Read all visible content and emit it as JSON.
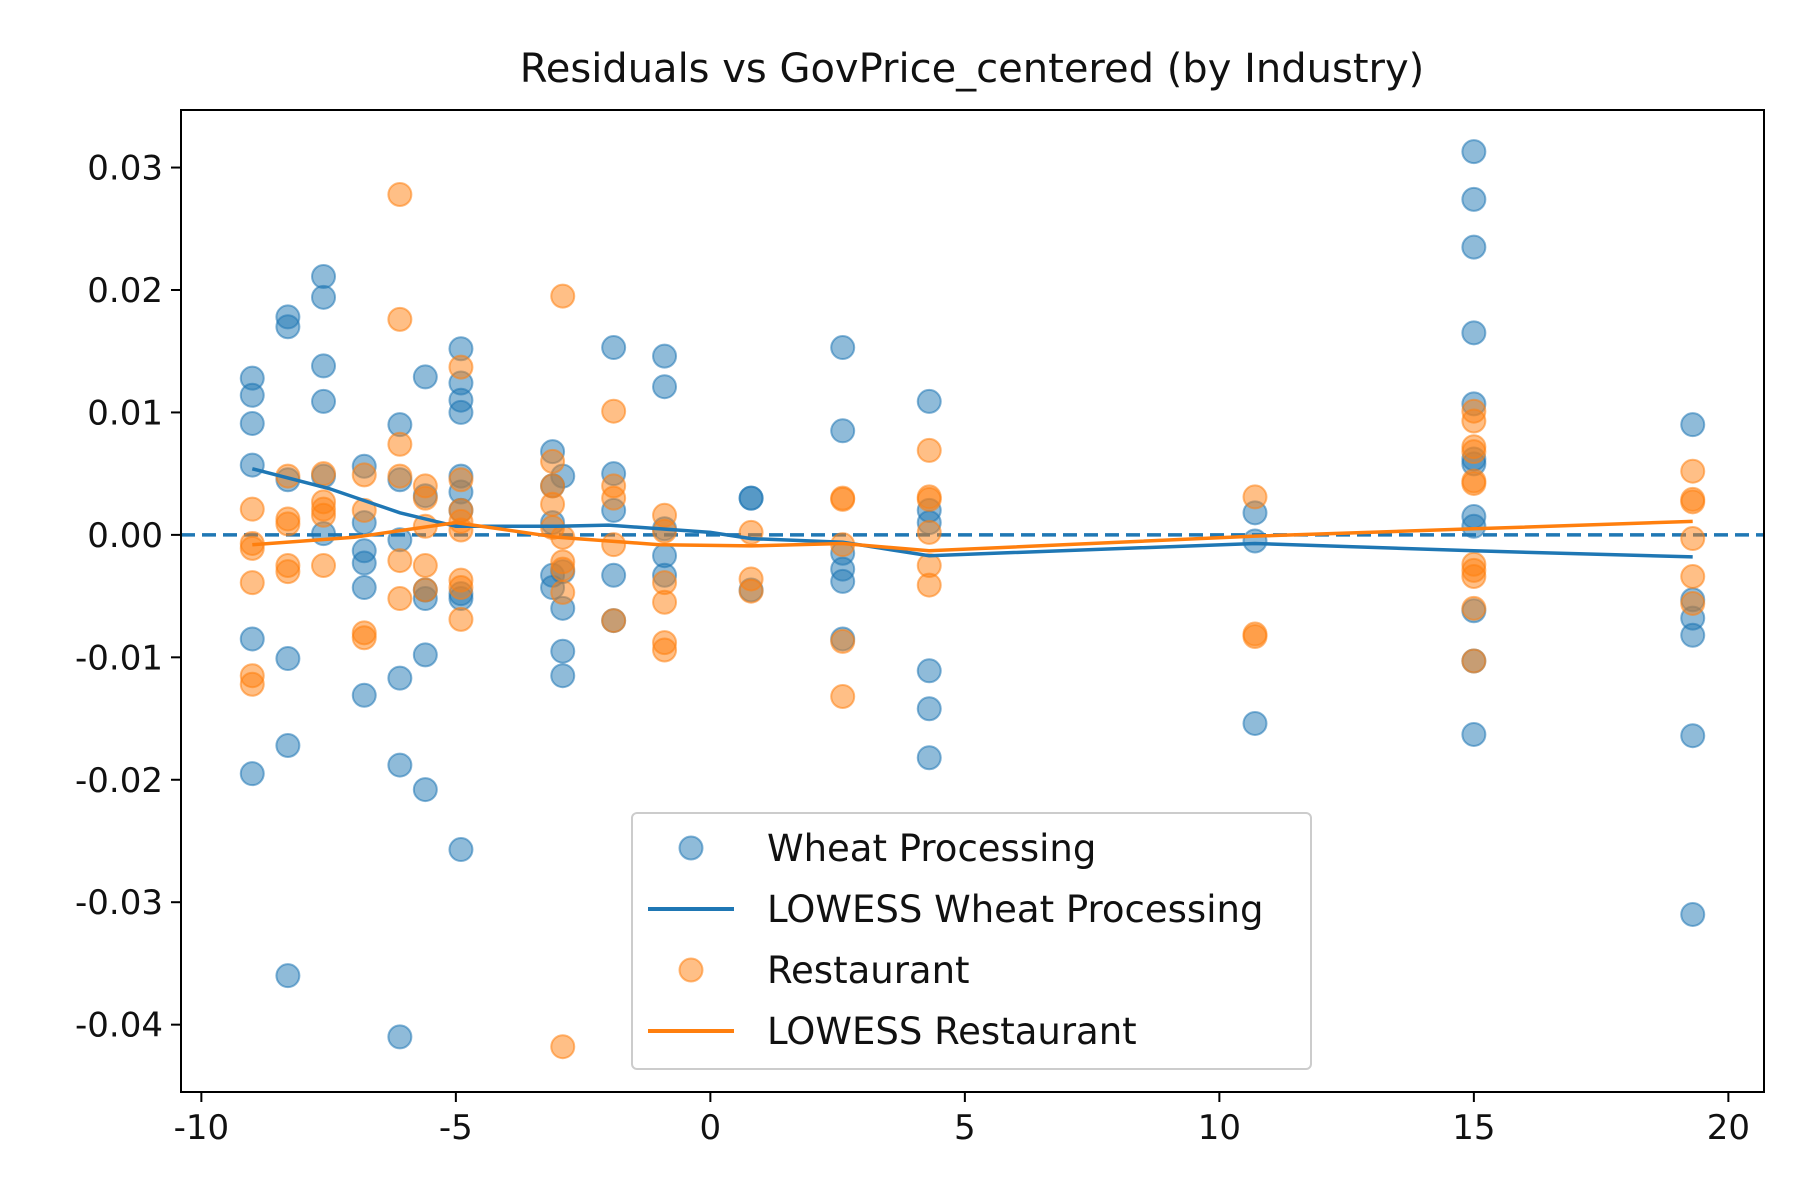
{
  "chart_data": {
    "type": "scatter",
    "title": "Residuals vs GovPrice_centered (by Industry)",
    "xlabel": "",
    "ylabel": "",
    "xlim": [
      -10.4,
      20.7
    ],
    "ylim": [
      -0.0455,
      0.0347
    ],
    "x_ticks": [
      -10,
      -5,
      0,
      5,
      10,
      15,
      20
    ],
    "x_tick_labels": [
      "-10",
      "-5",
      "0",
      "5",
      "10",
      "15",
      "20"
    ],
    "y_ticks": [
      0.03,
      0.02,
      0.01,
      0.0,
      -0.01,
      -0.02,
      -0.03,
      -0.04
    ],
    "y_tick_labels": [
      "0.03",
      "0.02",
      "0.01",
      "0.00",
      "-0.01",
      "-0.02",
      "-0.03",
      "-0.04"
    ],
    "grid": false,
    "reference_line": {
      "y": 0,
      "style": "dashed",
      "color": "#1f77b4"
    },
    "legend": {
      "placement": "lower-center",
      "entries": [
        {
          "label": "Wheat Processing",
          "kind": "marker",
          "color": "#1f77b4"
        },
        {
          "label": "LOWESS Wheat Processing",
          "kind": "line",
          "color": "#1f77b4"
        },
        {
          "label": "Restaurant",
          "kind": "marker",
          "color": "#ff7f0e"
        },
        {
          "label": "LOWESS Restaurant",
          "kind": "line",
          "color": "#ff7f0e"
        }
      ]
    },
    "series": [
      {
        "name": "Wheat Processing",
        "kind": "scatter",
        "color": "#1f77b4",
        "points": [
          [
            -9,
            0.0128
          ],
          [
            -9,
            0.0114
          ],
          [
            -9,
            0.0091
          ],
          [
            -9,
            0.0057
          ],
          [
            -9,
            -0.0085
          ],
          [
            -9,
            -0.0195
          ],
          [
            -8.3,
            0.0178
          ],
          [
            -8.3,
            0.017
          ],
          [
            -8.3,
            0.0045
          ],
          [
            -8.3,
            -0.0101
          ],
          [
            -8.3,
            -0.0172
          ],
          [
            -8.3,
            -0.036
          ],
          [
            -7.6,
            0.0211
          ],
          [
            -7.6,
            0.0194
          ],
          [
            -7.6,
            0.0138
          ],
          [
            -7.6,
            0.0109
          ],
          [
            -7.6,
            0.0048
          ],
          [
            -7.6,
            0.0001
          ],
          [
            -6.8,
            0.0056
          ],
          [
            -6.8,
            0.001
          ],
          [
            -6.8,
            -0.0013
          ],
          [
            -6.8,
            -0.0023
          ],
          [
            -6.8,
            -0.0043
          ],
          [
            -6.8,
            -0.0131
          ],
          [
            -6.1,
            0.009
          ],
          [
            -6.1,
            0.0045
          ],
          [
            -6.1,
            -0.0004
          ],
          [
            -6.1,
            -0.0117
          ],
          [
            -6.1,
            -0.0188
          ],
          [
            -6.1,
            -0.041
          ],
          [
            -5.6,
            0.0129
          ],
          [
            -5.6,
            0.0032
          ],
          [
            -5.6,
            -0.0045
          ],
          [
            -5.6,
            -0.0052
          ],
          [
            -5.6,
            -0.0098
          ],
          [
            -5.6,
            -0.0208
          ],
          [
            -4.9,
            0.0152
          ],
          [
            -4.9,
            0.0124
          ],
          [
            -4.9,
            0.011
          ],
          [
            -4.9,
            0.01
          ],
          [
            -4.9,
            0.0048
          ],
          [
            -4.9,
            0.0035
          ],
          [
            -4.9,
            0.002
          ],
          [
            -4.9,
            -0.0048
          ],
          [
            -4.9,
            -0.0052
          ],
          [
            -4.9,
            -0.0257
          ],
          [
            -3.1,
            0.0068
          ],
          [
            -3.1,
            0.004
          ],
          [
            -3.1,
            0.001
          ],
          [
            -3.1,
            -0.0033
          ],
          [
            -3.1,
            -0.0043
          ],
          [
            -2.9,
            0.0048
          ],
          [
            -2.9,
            -0.003
          ],
          [
            -2.9,
            -0.006
          ],
          [
            -2.9,
            -0.0095
          ],
          [
            -2.9,
            -0.0115
          ],
          [
            -1.9,
            0.0153
          ],
          [
            -1.9,
            0.005
          ],
          [
            -1.9,
            0.002
          ],
          [
            -1.9,
            -0.0033
          ],
          [
            -1.9,
            -0.007
          ],
          [
            -0.9,
            0.0146
          ],
          [
            -0.9,
            0.0121
          ],
          [
            -0.9,
            0.0005
          ],
          [
            -0.9,
            -0.0017
          ],
          [
            -0.9,
            -0.0033
          ],
          [
            0.8,
            0.003
          ],
          [
            0.8,
            0.003
          ],
          [
            0.8,
            -0.0045
          ],
          [
            2.6,
            0.0153
          ],
          [
            2.6,
            0.0085
          ],
          [
            2.6,
            -0.0015
          ],
          [
            2.6,
            -0.0028
          ],
          [
            2.6,
            -0.0038
          ],
          [
            2.6,
            -0.0085
          ],
          [
            4.3,
            0.0109
          ],
          [
            4.3,
            0.002
          ],
          [
            4.3,
            0.001
          ],
          [
            4.3,
            -0.0111
          ],
          [
            4.3,
            -0.0142
          ],
          [
            4.3,
            -0.0182
          ],
          [
            10.7,
            0.0018
          ],
          [
            10.7,
            -0.0005
          ],
          [
            10.7,
            -0.0154
          ],
          [
            15,
            0.0313
          ],
          [
            15,
            0.0274
          ],
          [
            15,
            0.0235
          ],
          [
            15,
            0.0165
          ],
          [
            15,
            0.0107
          ],
          [
            15,
            0.0062
          ],
          [
            15,
            0.0058
          ],
          [
            15,
            0.0015
          ],
          [
            15,
            0.0007
          ],
          [
            15,
            -0.0062
          ],
          [
            15,
            -0.0103
          ],
          [
            15,
            -0.0163
          ],
          [
            19.3,
            0.009
          ],
          [
            19.3,
            -0.0053
          ],
          [
            19.3,
            -0.0068
          ],
          [
            19.3,
            -0.0082
          ],
          [
            19.3,
            -0.0164
          ],
          [
            19.3,
            -0.031
          ]
        ]
      },
      {
        "name": "LOWESS Wheat Processing",
        "kind": "line",
        "color": "#1f77b4",
        "points": [
          [
            -9,
            0.0054
          ],
          [
            -7.5,
            0.0038
          ],
          [
            -6.1,
            0.0018
          ],
          [
            -5,
            0.0007
          ],
          [
            -3,
            0.0007
          ],
          [
            -2,
            0.0008
          ],
          [
            -1,
            0.0005
          ],
          [
            0,
            0.0002
          ],
          [
            0.8,
            -0.0003
          ],
          [
            2.6,
            -0.0006
          ],
          [
            4.3,
            -0.0017
          ],
          [
            10.7,
            -0.0007
          ],
          [
            15,
            -0.0013
          ],
          [
            19.3,
            -0.0018
          ]
        ]
      },
      {
        "name": "Restaurant",
        "kind": "scatter",
        "color": "#ff7f0e",
        "points": [
          [
            -9,
            0.0021
          ],
          [
            -9,
            -0.0007
          ],
          [
            -9,
            -0.0011
          ],
          [
            -9,
            -0.0039
          ],
          [
            -9,
            -0.0115
          ],
          [
            -9,
            -0.0122
          ],
          [
            -8.3,
            0.0048
          ],
          [
            -8.3,
            0.0013
          ],
          [
            -8.3,
            0.0009
          ],
          [
            -8.3,
            -0.0025
          ],
          [
            -8.3,
            -0.003
          ],
          [
            -7.6,
            0.005
          ],
          [
            -7.6,
            0.0027
          ],
          [
            -7.6,
            0.0021
          ],
          [
            -7.6,
            0.0016
          ],
          [
            -7.6,
            -0.0025
          ],
          [
            -6.8,
            0.0049
          ],
          [
            -6.8,
            0.002
          ],
          [
            -6.8,
            -0.008
          ],
          [
            -6.8,
            -0.0084
          ],
          [
            -6.1,
            0.0278
          ],
          [
            -6.1,
            0.0176
          ],
          [
            -6.1,
            0.0074
          ],
          [
            -6.1,
            0.0048
          ],
          [
            -6.1,
            -0.0021
          ],
          [
            -6.1,
            -0.0052
          ],
          [
            -5.6,
            0.004
          ],
          [
            -5.6,
            0.003
          ],
          [
            -5.6,
            0.0007
          ],
          [
            -5.6,
            -0.0025
          ],
          [
            -5.6,
            -0.0045
          ],
          [
            -4.9,
            0.0137
          ],
          [
            -4.9,
            0.0045
          ],
          [
            -4.9,
            0.002
          ],
          [
            -4.9,
            0.0011
          ],
          [
            -4.9,
            0.0004
          ],
          [
            -4.9,
            -0.0037
          ],
          [
            -4.9,
            -0.0043
          ],
          [
            -4.9,
            -0.0069
          ],
          [
            -3.1,
            0.006
          ],
          [
            -3.1,
            0.004
          ],
          [
            -3.1,
            0.0025
          ],
          [
            -3.1,
            0.0006
          ],
          [
            -2.9,
            0.0195
          ],
          [
            -2.9,
            -0.0002
          ],
          [
            -2.9,
            -0.0022
          ],
          [
            -2.9,
            -0.0028
          ],
          [
            -2.9,
            -0.0047
          ],
          [
            -2.9,
            -0.0418
          ],
          [
            -1.9,
            0.0101
          ],
          [
            -1.9,
            0.004
          ],
          [
            -1.9,
            0.003
          ],
          [
            -1.9,
            -0.0008
          ],
          [
            -1.9,
            -0.007
          ],
          [
            -0.9,
            0.0016
          ],
          [
            -0.9,
            0.0003
          ],
          [
            -0.9,
            -0.0039
          ],
          [
            -0.9,
            -0.0055
          ],
          [
            -0.9,
            -0.0088
          ],
          [
            -0.9,
            -0.0094
          ],
          [
            0.8,
            0.0002
          ],
          [
            0.8,
            -0.0036
          ],
          [
            0.8,
            -0.0046
          ],
          [
            2.6,
            0.003
          ],
          [
            2.6,
            0.0029
          ],
          [
            2.6,
            -0.0008
          ],
          [
            2.6,
            -0.0087
          ],
          [
            2.6,
            -0.0132
          ],
          [
            4.3,
            0.0069
          ],
          [
            4.3,
            0.0031
          ],
          [
            4.3,
            0.0029
          ],
          [
            4.3,
            0.0002
          ],
          [
            4.3,
            -0.0025
          ],
          [
            4.3,
            -0.0041
          ],
          [
            10.7,
            0.0031
          ],
          [
            10.7,
            -0.0081
          ],
          [
            10.7,
            -0.0083
          ],
          [
            15,
            0.0101
          ],
          [
            15,
            0.0093
          ],
          [
            15,
            0.0072
          ],
          [
            15,
            0.0068
          ],
          [
            15,
            0.0044
          ],
          [
            15,
            0.0042
          ],
          [
            15,
            -0.0024
          ],
          [
            15,
            -0.0029
          ],
          [
            15,
            -0.0034
          ],
          [
            15,
            -0.006
          ],
          [
            15,
            -0.0103
          ],
          [
            19.3,
            0.0052
          ],
          [
            19.3,
            0.0029
          ],
          [
            19.3,
            0.0027
          ],
          [
            19.3,
            -0.0003
          ],
          [
            19.3,
            -0.0034
          ],
          [
            19.3,
            -0.0056
          ]
        ]
      },
      {
        "name": "LOWESS Restaurant",
        "kind": "line",
        "color": "#ff7f0e",
        "points": [
          [
            -9,
            -0.0008
          ],
          [
            -7,
            -0.0002
          ],
          [
            -5,
            0.001
          ],
          [
            -3,
            -0.0002
          ],
          [
            -1,
            -0.0008
          ],
          [
            0.8,
            -0.0009
          ],
          [
            2.6,
            -0.0007
          ],
          [
            4.3,
            -0.0013
          ],
          [
            10.7,
            -0.0001
          ],
          [
            15,
            0.0005
          ],
          [
            19.3,
            0.0011
          ]
        ]
      }
    ]
  }
}
